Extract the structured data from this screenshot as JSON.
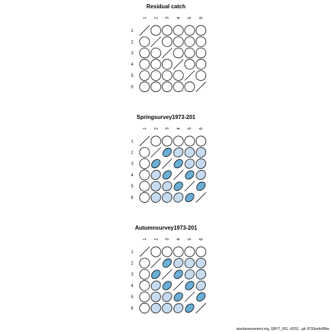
{
  "footer": "stockassessment.org, GBYT_001, r9152 , git: 8733eefe95be",
  "colors": {
    "zero": "#ffffff",
    "low": "#c6dbef",
    "high": "#6baed6",
    "stroke": "#000000"
  },
  "chart_data": [
    {
      "type": "heatmap",
      "title": "Residual catch",
      "labels": [
        "1",
        "2",
        "3",
        "4",
        "5",
        "6"
      ],
      "matrix": [
        [
          1,
          0,
          0,
          0,
          0,
          0
        ],
        [
          0,
          1,
          0,
          0,
          0,
          0
        ],
        [
          0,
          0,
          1,
          0,
          0,
          0
        ],
        [
          0,
          0,
          0,
          1,
          0,
          0
        ],
        [
          0,
          0,
          0,
          0,
          1,
          0
        ],
        [
          0,
          0,
          0,
          0,
          0,
          1
        ]
      ]
    },
    {
      "type": "heatmap",
      "title": "Springsurvey1973-201",
      "labels": [
        "1",
        "2",
        "3",
        "4",
        "5",
        "6"
      ],
      "matrix": [
        [
          1,
          0,
          0,
          0,
          0,
          0
        ],
        [
          0,
          1,
          0.6,
          0.3,
          0.1,
          0.1
        ],
        [
          0,
          0.6,
          1,
          0.6,
          0.3,
          0.1
        ],
        [
          0,
          0.3,
          0.6,
          1,
          0.6,
          0.3
        ],
        [
          0,
          0.1,
          0.3,
          0.6,
          1,
          0.6
        ],
        [
          0,
          0.1,
          0.1,
          0.3,
          0.6,
          1
        ]
      ]
    },
    {
      "type": "heatmap",
      "title": "Autumnsurvey1973-201",
      "labels": [
        "1",
        "2",
        "3",
        "4",
        "5",
        "6"
      ],
      "matrix": [
        [
          1,
          0,
          0,
          0,
          0,
          0
        ],
        [
          0,
          1,
          0.6,
          0.3,
          0.1,
          0.1
        ],
        [
          0,
          0.6,
          1,
          0.6,
          0.3,
          0.1
        ],
        [
          0,
          0.3,
          0.6,
          1,
          0.6,
          0.3
        ],
        [
          0,
          0.1,
          0.3,
          0.6,
          1,
          0.6
        ],
        [
          0,
          0.1,
          0.1,
          0.3,
          0.6,
          1
        ]
      ]
    }
  ]
}
